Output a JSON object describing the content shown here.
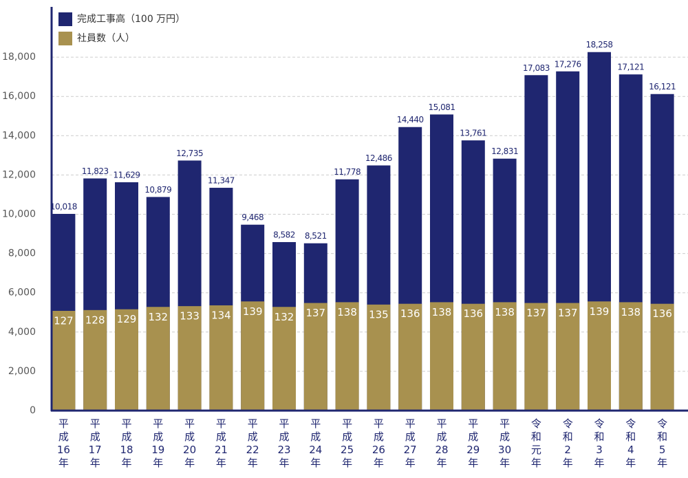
{
  "chart_data": {
    "type": "bar",
    "legend_position": "top-left",
    "grid": true,
    "categories": [
      "平成16年",
      "平成17年",
      "平成18年",
      "平成19年",
      "平成20年",
      "平成21年",
      "平成22年",
      "平成23年",
      "平成24年",
      "平成25年",
      "平成26年",
      "平成27年",
      "平成28年",
      "平成29年",
      "平成30年",
      "令和元年",
      "令和2年",
      "令和3年",
      "令和4年",
      "令和5年"
    ],
    "ylim": [
      0,
      20000
    ],
    "yticks": [
      0,
      {
        "value": 2000,
        "label": "2,000"
      },
      {
        "value": 4000,
        "label": "4,000"
      },
      {
        "value": 6000,
        "label": "6,000"
      },
      {
        "value": 8000,
        "label": "8,000"
      },
      {
        "value": 10000,
        "label": "10,000"
      },
      {
        "value": 12000,
        "label": "12,000"
      },
      {
        "value": 14000,
        "label": "14,000"
      },
      {
        "value": 16000,
        "label": "16,000"
      },
      {
        "value": 18000,
        "label": "18,000"
      }
    ],
    "y2lim": [
      0,
      500
    ],
    "series": [
      {
        "name": "完成工事高（100 万円）",
        "color": "#1f2670",
        "values": [
          10018,
          11823,
          11629,
          10879,
          12735,
          11347,
          9468,
          8582,
          8521,
          11778,
          12486,
          14440,
          15081,
          13761,
          12831,
          17083,
          17276,
          18258,
          17121,
          16121
        ],
        "value_labels": [
          "10,018",
          "11,823",
          "11,629",
          "10,879",
          "12,735",
          "11,347",
          "9,468",
          "8,582",
          "8,521",
          "11,778",
          "12,486",
          "14,440",
          "15,081",
          "13,761",
          "12,831",
          "17,083",
          "17,276",
          "18,258",
          "17,121",
          "16,121"
        ]
      },
      {
        "name": "社員数（人）",
        "color": "#a8914f",
        "axis": "y2",
        "values": [
          127,
          128,
          129,
          132,
          133,
          134,
          139,
          132,
          137,
          138,
          135,
          136,
          138,
          136,
          138,
          137,
          137,
          139,
          138,
          136
        ]
      }
    ]
  }
}
